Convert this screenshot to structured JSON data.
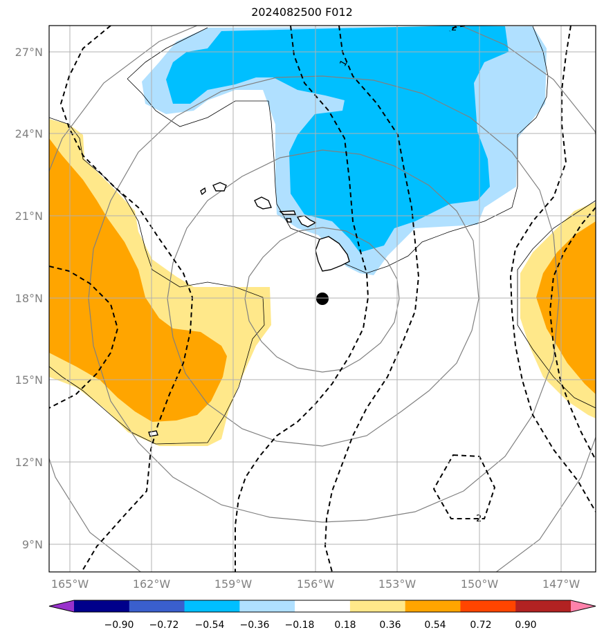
{
  "title": "2024082500 F012",
  "lat_labels": [
    "27°N",
    "24°N",
    "21°N",
    "18°N",
    "15°N",
    "12°N",
    "9°N"
  ],
  "lon_labels": [
    "165°W",
    "162°W",
    "159°W",
    "156°W",
    "153°W",
    "150°W",
    "147°W"
  ],
  "colorbar": {
    "labels": [
      "−0.90",
      "−0.72",
      "−0.54",
      "−0.36",
      "−0.18",
      "0.18",
      "0.36",
      "0.54",
      "0.72",
      "0.90"
    ],
    "colors": [
      "#9932cc",
      "#00008b",
      "#3a5fcd",
      "#00bfff",
      "#b0e0ff",
      "#ffffff",
      "#ffe88a",
      "#ffa500",
      "#ff4500",
      "#b22222",
      "#ff82ab"
    ]
  },
  "contour_labels": [
    "1",
    "2",
    "2"
  ],
  "storm_center": {
    "lon": -155.8,
    "lat": 18.0
  }
}
